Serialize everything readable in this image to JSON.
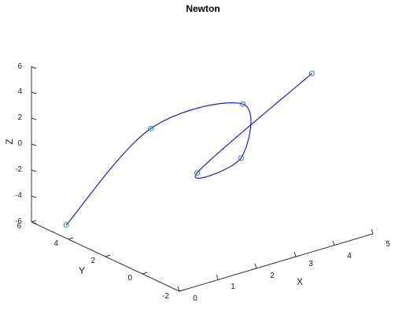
{
  "chart_data": {
    "type": "line3d",
    "title": "Newton",
    "xlabel": "X",
    "ylabel": "Y",
    "zlabel": "Z",
    "xticks": [
      "0",
      "1",
      "2",
      "3",
      "4",
      "5"
    ],
    "yticks": [
      "-2",
      "0",
      "2",
      "4",
      "6"
    ],
    "zticks": [
      "6",
      "4",
      "2",
      "0",
      "-2",
      "-4",
      "-6"
    ],
    "xlim": [
      0,
      5
    ],
    "ylim": [
      -2,
      6
    ],
    "zlim": [
      -6,
      6
    ],
    "grid": false,
    "series": [
      {
        "line_color": "#1f1fd6",
        "marker": "circle",
        "marker_color": "#2a7fc0",
        "points": [
          {
            "x": 0.23,
            "y": 4.6,
            "z": -5.5
          },
          {
            "x": 1.84,
            "y": 3.4,
            "z": 1.3
          },
          {
            "x": 3.55,
            "y": 2.0,
            "z": 2.6
          },
          {
            "x": 2.93,
            "y": 0.8,
            "z": -0.2
          },
          {
            "x": 2.08,
            "y": 1.4,
            "z": -1.0
          },
          {
            "x": 4.71,
            "y": 0.7,
            "z": 4.8
          }
        ],
        "curve_note": "helical trajectory through the six marked points"
      }
    ]
  }
}
